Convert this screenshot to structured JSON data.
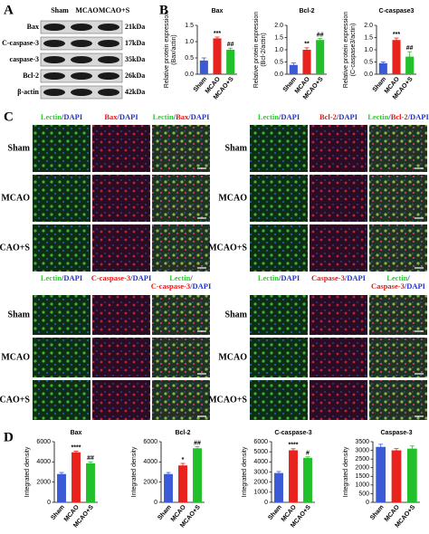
{
  "panel_a": {
    "label": "A",
    "lanes": [
      "Sham",
      "MCAO",
      "MCAO+S"
    ],
    "proteins": [
      {
        "name": "Bax",
        "size": "21kDa"
      },
      {
        "name": "C-caspase-3",
        "size": "17kDa"
      },
      {
        "name": "caspase-3",
        "size": "35kDa"
      },
      {
        "name": "Bcl-2",
        "size": "26kDa"
      },
      {
        "name": "β-actin",
        "size": "42kDa"
      }
    ]
  },
  "panel_b_label": "B",
  "panel_c": {
    "label": "C",
    "groups": [
      {
        "rows": [
          "Sham",
          "MCAO",
          "MCAO+S"
        ],
        "headers": [
          [
            [
              {
                "text": "Lectin",
                "color": "#2ecc2e"
              },
              {
                "text": "/DAPI",
                "color": "#2233cc"
              }
            ]
          ],
          [
            [
              {
                "text": "Bax",
                "color": "#e01818"
              },
              {
                "text": "/DAPI",
                "color": "#2233cc"
              }
            ]
          ],
          [
            [
              {
                "text": "Lectin",
                "color": "#2ecc2e"
              },
              {
                "text": "/",
                "color": "#2233cc"
              },
              {
                "text": "Bax",
                "color": "#e01818"
              },
              {
                "text": "/DAPI",
                "color": "#2233cc"
              }
            ]
          ]
        ]
      },
      {
        "rows": [
          "Sham",
          "MCAO",
          "MCAO+S"
        ],
        "headers": [
          [
            [
              {
                "text": "Lectin",
                "color": "#2ecc2e"
              },
              {
                "text": "/DAPI",
                "color": "#2233cc"
              }
            ]
          ],
          [
            [
              {
                "text": "Bcl-2",
                "color": "#e01818"
              },
              {
                "text": "/DAPI",
                "color": "#2233cc"
              }
            ]
          ],
          [
            [
              {
                "text": "Lectin",
                "color": "#2ecc2e"
              },
              {
                "text": "/",
                "color": "#2233cc"
              },
              {
                "text": "Bcl-2",
                "color": "#e01818"
              },
              {
                "text": "/DAPI",
                "color": "#2233cc"
              }
            ]
          ]
        ]
      },
      {
        "rows": [
          "Sham",
          "MCAO",
          "MCAO+S"
        ],
        "headers": [
          [
            [
              {
                "text": "Lectin",
                "color": "#2ecc2e"
              },
              {
                "text": "/DAPI",
                "color": "#2233cc"
              }
            ]
          ],
          [
            [
              {
                "text": "C-caspase-3",
                "color": "#e01818"
              },
              {
                "text": "/DAPI",
                "color": "#2233cc"
              }
            ]
          ],
          [
            [
              {
                "text": "Lectin",
                "color": "#2ecc2e"
              },
              {
                "text": "/",
                "color": "#2233cc"
              }
            ],
            [
              {
                "text": "C-caspase-3",
                "color": "#e01818"
              },
              {
                "text": "/DAPI",
                "color": "#2233cc"
              }
            ]
          ]
        ]
      },
      {
        "rows": [
          "Sham",
          "MCAO",
          "MCAO+S"
        ],
        "headers": [
          [
            [
              {
                "text": "Lectin",
                "color": "#2ecc2e"
              },
              {
                "text": "/DAPI",
                "color": "#2233cc"
              }
            ]
          ],
          [
            [
              {
                "text": "Caspase-3",
                "color": "#e01818"
              },
              {
                "text": "/DAPI",
                "color": "#2233cc"
              }
            ]
          ],
          [
            [
              {
                "text": "Lectin",
                "color": "#2ecc2e"
              },
              {
                "text": "/",
                "color": "#2233cc"
              }
            ],
            [
              {
                "text": "Caspase-3",
                "color": "#e01818"
              },
              {
                "text": "/DAPI",
                "color": "#2233cc"
              }
            ]
          ]
        ]
      }
    ]
  },
  "panel_d_label": "D",
  "chart_data": [
    {
      "type": "bar",
      "title": "Bax",
      "ylabel": [
        "Relative protein expression",
        "(Bax/actin)"
      ],
      "categories": [
        "Sham",
        "MCAO",
        "MCAO+S"
      ],
      "values": [
        0.42,
        1.1,
        0.75
      ],
      "errors": [
        0.08,
        0.04,
        0.05
      ],
      "annotations": [
        null,
        "***",
        "##"
      ],
      "colors": [
        "#3b5bd6",
        "#e8221c",
        "#22c02a"
      ],
      "ylim": [
        0,
        1.5
      ],
      "yticks": [
        {
          "value": 0,
          "label": "0.0"
        },
        0.5,
        {
          "value": 1,
          "label": "1.0"
        },
        1.5
      ]
    },
    {
      "type": "bar",
      "title": "Bcl-2",
      "ylabel": [
        "Relative protein expression",
        "(Bcl-2/actin)"
      ],
      "categories": [
        "Sham",
        "MCAO",
        "MCAO+S"
      ],
      "values": [
        0.38,
        1.0,
        1.4
      ],
      "errors": [
        0.08,
        0.08,
        0.06
      ],
      "annotations": [
        null,
        "**",
        "##"
      ],
      "colors": [
        "#3b5bd6",
        "#e8221c",
        "#22c02a"
      ],
      "ylim": [
        0,
        2
      ],
      "yticks": [
        {
          "value": 0,
          "label": "0.0"
        },
        0.5,
        {
          "value": 1,
          "label": "1.0"
        },
        1.5,
        {
          "value": 2,
          "label": "2.0"
        }
      ]
    },
    {
      "type": "bar",
      "title": "C-caspase3",
      "ylabel": [
        "Relative protein expression",
        "(C-caspase3/actin)"
      ],
      "categories": [
        "Sham",
        "MCAO",
        "MCAO+S"
      ],
      "values": [
        0.45,
        1.4,
        0.72
      ],
      "errors": [
        0.05,
        0.08,
        0.2
      ],
      "annotations": [
        null,
        "***",
        "##"
      ],
      "colors": [
        "#3b5bd6",
        "#e8221c",
        "#22c02a"
      ],
      "ylim": [
        0,
        2
      ],
      "yticks": [
        {
          "value": 0,
          "label": "0.0"
        },
        0.5,
        {
          "value": 1,
          "label": "1.0"
        },
        1.5,
        {
          "value": 2,
          "label": "2.0"
        }
      ]
    },
    {
      "type": "bar",
      "title": "Bax",
      "ylabel": [
        "Integrated density"
      ],
      "categories": [
        "Sham",
        "MCAO",
        "MCAO+S"
      ],
      "values": [
        2800,
        4950,
        3850
      ],
      "errors": [
        150,
        100,
        150
      ],
      "annotations": [
        null,
        "****",
        "##"
      ],
      "colors": [
        "#3b5bd6",
        "#e8221c",
        "#22c02a"
      ],
      "ylim": [
        0,
        6000
      ],
      "yticks": [
        0,
        2000,
        4000,
        6000
      ]
    },
    {
      "type": "bar",
      "title": "Bcl-2",
      "ylabel": [
        "Integrated density"
      ],
      "categories": [
        "Sham",
        "MCAO",
        "MCAO+S"
      ],
      "values": [
        2800,
        3650,
        5350
      ],
      "errors": [
        150,
        200,
        150
      ],
      "annotations": [
        null,
        "*",
        "##"
      ],
      "colors": [
        "#3b5bd6",
        "#e8221c",
        "#22c02a"
      ],
      "ylim": [
        0,
        6000
      ],
      "yticks": [
        0,
        2000,
        4000,
        6000
      ]
    },
    {
      "type": "bar",
      "title": "C-caspase-3",
      "ylabel": [
        "Integrated density"
      ],
      "categories": [
        "Sham",
        "MCAO",
        "MCAO+S"
      ],
      "values": [
        2900,
        5150,
        4400
      ],
      "errors": [
        150,
        150,
        100
      ],
      "annotations": [
        null,
        "****",
        "#"
      ],
      "colors": [
        "#3b5bd6",
        "#e8221c",
        "#22c02a"
      ],
      "ylim": [
        0,
        6000
      ],
      "yticks": [
        0,
        1000,
        2000,
        3000,
        4000,
        5000,
        6000
      ]
    },
    {
      "type": "bar",
      "title": "Caspase-3",
      "ylabel": [
        "Integrated density"
      ],
      "categories": [
        "Sham",
        "MCAO",
        "MCAO+S"
      ],
      "values": [
        3200,
        3000,
        3100
      ],
      "errors": [
        150,
        100,
        150
      ],
      "colors": [
        "#3b5bd6",
        "#e8221c",
        "#22c02a"
      ],
      "ylim": [
        0,
        3500
      ],
      "yticks": [
        0,
        500,
        1000,
        1500,
        2000,
        2500,
        3000,
        3500
      ]
    }
  ]
}
